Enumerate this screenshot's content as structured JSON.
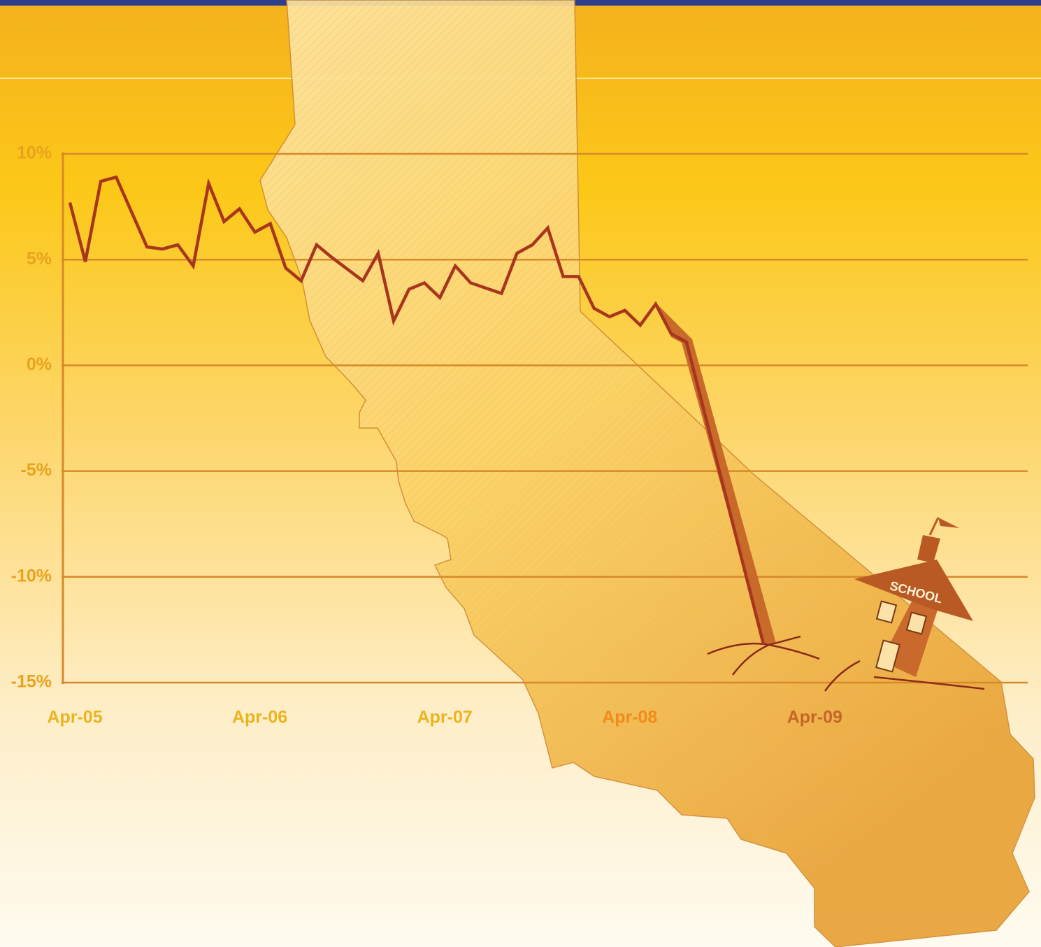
{
  "chart_data": {
    "type": "line",
    "x": [
      "2005-04",
      "2005-05",
      "2005-06",
      "2005-07",
      "2005-09",
      "2005-10",
      "2005-11",
      "2005-12",
      "2006-01",
      "2006-02",
      "2006-03",
      "2006-04",
      "2006-05",
      "2006-06",
      "2006-07",
      "2006-08",
      "2006-09",
      "2006-11",
      "2006-12",
      "2007-01",
      "2007-02",
      "2007-03",
      "2007-04",
      "2007-05",
      "2007-06",
      "2007-08",
      "2007-09",
      "2007-10",
      "2007-11",
      "2007-12",
      "2008-01",
      "2008-02",
      "2008-03",
      "2008-04",
      "2008-05",
      "2008-06",
      "2008-07",
      "2008-08",
      "2009-01"
    ],
    "series": [
      {
        "color": "#a8361e",
        "values": [
          7.7,
          4.9,
          8.7,
          8.9,
          5.6,
          5.5,
          5.7,
          4.7,
          8.6,
          6.8,
          7.4,
          6.3,
          6.7,
          4.6,
          4.0,
          5.7,
          5.1,
          4.0,
          5.3,
          2.1,
          3.6,
          3.9,
          3.2,
          4.7,
          3.9,
          3.4,
          5.3,
          5.7,
          6.5,
          4.2,
          4.2,
          2.7,
          2.3,
          2.6,
          1.9,
          2.9,
          1.5,
          1.1,
          -13.2
        ]
      }
    ],
    "xlim": [
      "2005-04",
      "2010-06"
    ],
    "xticks": [
      {
        "value": "2005-04",
        "label": "Apr-05"
      },
      {
        "value": "2006-04",
        "label": "Apr-06"
      },
      {
        "value": "2007-04",
        "label": "Apr-07"
      },
      {
        "value": "2008-04",
        "label": "Apr-08"
      },
      {
        "value": "2009-04",
        "label": "Apr-09"
      }
    ],
    "ylim": [
      -15,
      10
    ],
    "yticks": [
      {
        "value": -15,
        "label": "-15%"
      },
      {
        "value": -10,
        "label": "-10%"
      },
      {
        "value": -5,
        "label": "-5%"
      },
      {
        "value": 0,
        "label": "0%"
      },
      {
        "value": 5,
        "label": "5%"
      },
      {
        "value": 10,
        "label": "10%"
      }
    ],
    "grid": true,
    "annotation": "SCHOOL"
  }
}
